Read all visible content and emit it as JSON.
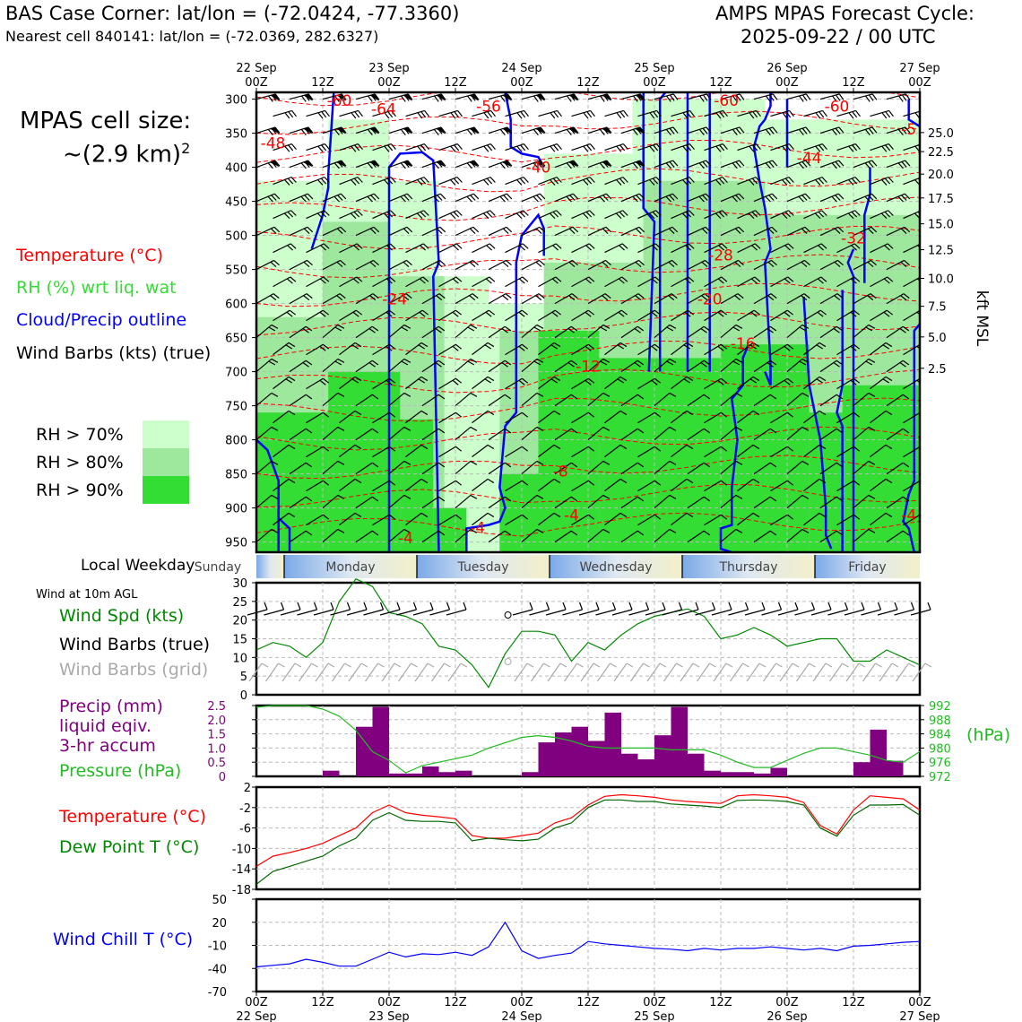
{
  "header": {
    "title_left": "BAS Case Corner: lat/lon = (-72.0424, -77.3360)",
    "subtitle_left": "Nearest cell 840141: lat/lon = (-72.0369, 282.6327)",
    "title_right_1": "AMPS MPAS Forecast Cycle:",
    "title_right_2": "2025-09-22 / 00 UTC"
  },
  "sidebar": {
    "cell_size_label": "MPAS cell size:",
    "cell_size_value": "~(2.9 km)",
    "cell_size_exp": "2",
    "legend_temperature": "Temperature (°C)",
    "legend_rh": "RH (%) wrt liq. wat",
    "legend_cloud": "Cloud/Precip outline",
    "legend_wind": "Wind Barbs (kts) (true)",
    "rh_levels": [
      "RH > 70%",
      "RH > 80%",
      "RH > 90%"
    ],
    "local_weekday_label": "Local Weekday",
    "wind10m_title": "Wind at 10m AGL",
    "wind_spd_label": "Wind Spd (kts)",
    "wind_barbs_true_label": "Wind Barbs (true)",
    "wind_barbs_grid_label": "Wind Barbs (grid)",
    "precip_label_1": "Precip (mm)",
    "precip_label_2": "liquid eqiv.",
    "precip_label_3": "3-hr accum",
    "pressure_label": "Pressure (hPa)",
    "pressure_unit": "(hPa)",
    "temp_label": "Temperature (°C)",
    "dew_label": "Dew Point T (°C)",
    "windchill_label": "Wind Chill T (°C)"
  },
  "colors": {
    "temperature": "#ff0000",
    "rh_70": "#ccffcc",
    "rh_80": "#9ee89e",
    "rh_90": "#33dd33",
    "cloud": "#0000ff",
    "wind_speed": "#008800",
    "precip": "#800080",
    "pressure": "#22bb22",
    "dewpoint": "#006600",
    "windchill": "#0000ff",
    "barb_grid": "#aaaaaa"
  },
  "chart_data": [
    {
      "type": "heatmap",
      "name": "time-height cross section",
      "top_ticks": [
        {
          "h": 0,
          "l1": "22 Sep",
          "l2": "00Z"
        },
        {
          "h": 12,
          "l1": "",
          "l2": "12Z"
        },
        {
          "h": 24,
          "l1": "23 Sep",
          "l2": "00Z"
        },
        {
          "h": 36,
          "l1": "",
          "l2": "12Z"
        },
        {
          "h": 48,
          "l1": "24 Sep",
          "l2": "00Z"
        },
        {
          "h": 60,
          "l1": "",
          "l2": "12Z"
        },
        {
          "h": 72,
          "l1": "25 Sep",
          "l2": "00Z"
        },
        {
          "h": 84,
          "l1": "",
          "l2": "12Z"
        },
        {
          "h": 96,
          "l1": "26 Sep",
          "l2": "00Z"
        },
        {
          "h": 108,
          "l1": "",
          "l2": "12Z"
        },
        {
          "h": 120,
          "l1": "27 Sep",
          "l2": "00Z"
        }
      ],
      "pressure_ticks": [
        300,
        350,
        400,
        450,
        500,
        550,
        600,
        650,
        700,
        750,
        800,
        850,
        900,
        950
      ],
      "height_ticks_kft": [
        {
          "p": 349,
          "l": "25.0"
        },
        {
          "p": 377,
          "l": "22.5"
        },
        {
          "p": 410,
          "l": "20.0"
        },
        {
          "p": 445,
          "l": "17.5"
        },
        {
          "p": 483,
          "l": "15.0"
        },
        {
          "p": 521,
          "l": "12.5"
        },
        {
          "p": 563,
          "l": "10.0"
        },
        {
          "p": 604,
          "l": "7.5"
        },
        {
          "p": 649,
          "l": "5.0"
        },
        {
          "p": 695,
          "l": "2.5"
        }
      ],
      "right_axis_label": "kft MSL",
      "temp_contour_labels": [
        {
          "h": 15,
          "p": 310,
          "t": "-60"
        },
        {
          "h": 23,
          "p": 322,
          "t": "-64"
        },
        {
          "h": 42,
          "p": 318,
          "t": "-56"
        },
        {
          "h": 85,
          "p": 310,
          "t": "-60"
        },
        {
          "h": 105,
          "p": 318,
          "t": "-60"
        },
        {
          "h": 118,
          "p": 352,
          "t": "-5"
        },
        {
          "h": 3,
          "p": 372,
          "t": "-48"
        },
        {
          "h": 51,
          "p": 408,
          "t": "-40"
        },
        {
          "h": 100,
          "p": 394,
          "t": "-44"
        },
        {
          "h": 108,
          "p": 512,
          "t": "-32"
        },
        {
          "h": 84,
          "p": 537,
          "t": "-28"
        },
        {
          "h": 25,
          "p": 601,
          "t": "-24"
        },
        {
          "h": 82,
          "p": 601,
          "t": "-20"
        },
        {
          "h": 88,
          "p": 666,
          "t": "-16"
        },
        {
          "h": 60,
          "p": 700,
          "t": "-12"
        },
        {
          "h": 55,
          "p": 854,
          "t": "-8"
        },
        {
          "h": 57,
          "p": 918,
          "t": "-4"
        },
        {
          "h": 27,
          "p": 952,
          "t": "-4"
        },
        {
          "h": 40,
          "p": 937,
          "t": "-4"
        },
        {
          "h": 118,
          "p": 918,
          "t": "-4"
        }
      ]
    },
    {
      "type": "line",
      "name": "wind speed 10m",
      "x": [
        0,
        3,
        6,
        9,
        12,
        15,
        18,
        21,
        24,
        27,
        30,
        33,
        36,
        39,
        42,
        45,
        48,
        51,
        54,
        57,
        60,
        63,
        66,
        69,
        72,
        75,
        78,
        81,
        84,
        87,
        90,
        93,
        96,
        99,
        102,
        105,
        108,
        111,
        114,
        117,
        120
      ],
      "values": [
        12,
        14,
        13,
        10,
        14,
        25,
        31,
        29,
        22,
        21,
        19,
        13,
        12,
        8,
        2,
        11,
        17,
        17,
        16,
        9,
        14,
        12,
        16,
        19,
        21,
        22,
        23,
        21,
        15,
        16,
        18,
        16,
        13,
        14,
        15,
        15,
        9,
        9,
        12,
        10,
        8
      ],
      "ylim": [
        0,
        30
      ],
      "yticks": [
        0,
        5,
        10,
        15,
        20,
        25,
        30
      ]
    },
    {
      "type": "bar",
      "name": "precip 3-hr accum",
      "x": [
        0,
        3,
        6,
        9,
        12,
        15,
        18,
        21,
        24,
        27,
        30,
        33,
        36,
        39,
        42,
        45,
        48,
        51,
        54,
        57,
        60,
        63,
        66,
        69,
        72,
        75,
        78,
        81,
        84,
        87,
        90,
        93,
        96,
        99,
        102,
        105,
        108,
        111,
        114,
        117
      ],
      "values": [
        0,
        0,
        0,
        0,
        0.2,
        0,
        1.75,
        2.45,
        0.1,
        0.1,
        0.35,
        0.15,
        0.2,
        0,
        0,
        0,
        0.15,
        1.2,
        1.55,
        1.75,
        1.25,
        2.25,
        0.8,
        0.6,
        1.45,
        2.45,
        0.8,
        0.2,
        0.15,
        0.15,
        0.1,
        0.3,
        0,
        0,
        0,
        0,
        0.5,
        1.65,
        0.55,
        0
      ],
      "ylim": [
        0,
        2.5
      ],
      "yticks": [
        "0",
        "0.5",
        "1.0",
        "1.5",
        "2.0",
        "2.5"
      ]
    },
    {
      "type": "line",
      "name": "pressure",
      "x": [
        0,
        3,
        6,
        9,
        12,
        15,
        18,
        21,
        24,
        27,
        30,
        33,
        36,
        39,
        42,
        45,
        48,
        51,
        54,
        57,
        60,
        63,
        66,
        69,
        72,
        75,
        78,
        81,
        84,
        87,
        90,
        93,
        96,
        99,
        102,
        105,
        108,
        111,
        114,
        117,
        120
      ],
      "values": [
        991.5,
        992,
        992,
        992,
        991,
        989,
        985,
        979,
        976.5,
        973,
        975,
        976,
        977,
        978,
        980,
        981.5,
        983,
        983.5,
        983,
        982,
        980.5,
        980,
        980,
        980,
        980,
        979.5,
        979.5,
        979.5,
        978,
        976,
        974.5,
        974.5,
        976.5,
        978.5,
        980,
        980,
        979,
        978,
        976.5,
        976,
        979
      ],
      "ylim": [
        972,
        992
      ],
      "yticks": [
        972,
        976,
        980,
        984,
        988,
        992
      ]
    },
    {
      "type": "line",
      "name": "temperature and dew point",
      "x": [
        0,
        3,
        6,
        9,
        12,
        15,
        18,
        21,
        24,
        27,
        30,
        33,
        36,
        39,
        42,
        45,
        48,
        51,
        54,
        57,
        60,
        63,
        66,
        69,
        72,
        75,
        78,
        81,
        84,
        87,
        90,
        93,
        96,
        99,
        102,
        105,
        108,
        111,
        114,
        117,
        120
      ],
      "series": [
        {
          "name": "Temperature",
          "values": [
            -13.5,
            -11.5,
            -10.8,
            -10,
            -9,
            -7.5,
            -6,
            -3,
            -1.5,
            -3,
            -3.5,
            -3.8,
            -4.2,
            -7.5,
            -8,
            -8,
            -7.5,
            -7,
            -5,
            -4,
            -1.5,
            0.2,
            0.5,
            0.3,
            0,
            -0.5,
            -0.8,
            -1,
            -1.2,
            0.3,
            0.5,
            0.3,
            0,
            -1,
            -5.5,
            -7.2,
            -2.5,
            0.3,
            0,
            -0.3,
            -2.5
          ]
        },
        {
          "name": "Dew Point",
          "values": [
            -17,
            -14.5,
            -13.5,
            -12.5,
            -11.5,
            -9.5,
            -8,
            -4.5,
            -3,
            -4.5,
            -4.7,
            -4.7,
            -5,
            -8.5,
            -8,
            -8.3,
            -8.5,
            -8.2,
            -6,
            -5,
            -2,
            -0.5,
            -0.5,
            -0.8,
            -0.8,
            -1.3,
            -1.5,
            -1.7,
            -2,
            -0.6,
            -0.5,
            -0.6,
            -0.8,
            -1.5,
            -6,
            -7.6,
            -3.5,
            -1.5,
            -1.5,
            -1.4,
            -3.5
          ]
        }
      ],
      "ylim": [
        -18,
        2
      ],
      "yticks": [
        "2",
        "-2",
        "-6",
        "-10",
        "-14",
        "-18"
      ]
    },
    {
      "type": "line",
      "name": "wind chill",
      "x": [
        0,
        3,
        6,
        9,
        12,
        15,
        18,
        21,
        24,
        27,
        30,
        33,
        36,
        39,
        42,
        45,
        48,
        51,
        54,
        57,
        60,
        63,
        66,
        69,
        72,
        75,
        78,
        81,
        84,
        87,
        90,
        93,
        96,
        99,
        102,
        105,
        108,
        111,
        114,
        117,
        120
      ],
      "values": [
        -38,
        -36,
        -34,
        -28,
        -32,
        -37,
        -37,
        -28,
        -19,
        -25,
        -21,
        -22,
        -19,
        -23,
        -12,
        20,
        -17,
        -27,
        -23,
        -20,
        -5,
        -8,
        -10,
        -12,
        -14,
        -15,
        -17,
        -14,
        -16,
        -14,
        -14,
        -12,
        -14,
        -16,
        -14,
        -17,
        -11,
        -10,
        -8,
        -6,
        -5
      ],
      "ylim": [
        -70,
        50
      ],
      "yticks": [
        "50",
        "20",
        "-10",
        "-40",
        "-70"
      ],
      "bottom_ticks": [
        {
          "h": 0,
          "l1": "00Z",
          "l2": "22 Sep"
        },
        {
          "h": 12,
          "l1": "12Z",
          "l2": ""
        },
        {
          "h": 24,
          "l1": "00Z",
          "l2": "23 Sep"
        },
        {
          "h": 36,
          "l1": "12Z",
          "l2": ""
        },
        {
          "h": 48,
          "l1": "00Z",
          "l2": "24 Sep"
        },
        {
          "h": 60,
          "l1": "12Z",
          "l2": ""
        },
        {
          "h": 72,
          "l1": "00Z",
          "l2": "25 Sep"
        },
        {
          "h": 84,
          "l1": "12Z",
          "l2": ""
        },
        {
          "h": 96,
          "l1": "00Z",
          "l2": "26 Sep"
        },
        {
          "h": 108,
          "l1": "12Z",
          "l2": ""
        },
        {
          "h": 120,
          "l1": "00Z",
          "l2": "27 Sep"
        }
      ]
    }
  ],
  "weekdays": [
    "Sunday",
    "Monday",
    "Tuesday",
    "Wednesday",
    "Thursday",
    "Friday"
  ]
}
